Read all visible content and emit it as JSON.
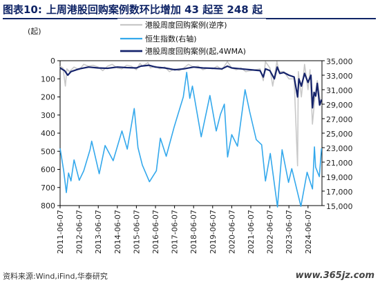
{
  "title": {
    "label": "图表10:",
    "text": "上周港股回购案例数环比增加 43 起至 248 起"
  },
  "left_unit": "(起)",
  "source": "资料来源:Wind,iFind,华泰研究",
  "watermark": "www.365jz.com",
  "colors": {
    "weekly_gray": "#c8c8c8",
    "hsi_blue": "#33a8ec",
    "ma4_navy": "#15236b",
    "title_navy": "#0f2466"
  },
  "chart_data": {
    "type": "line",
    "x_tick_labels": [
      "2011-06-07",
      "2012-06-07",
      "2013-06-07",
      "2014-06-07",
      "2015-06-07",
      "2016-06-07",
      "2017-06-07",
      "2018-06-07",
      "2019-06-07",
      "2020-06-07",
      "2021-06-07",
      "2022-06-07",
      "2023-06-07",
      "2024-06-07"
    ],
    "xlim": [
      "2011-06-07",
      "2025-03-01"
    ],
    "y_left": {
      "reversed": true,
      "ylim": [
        0,
        800
      ],
      "ticks": [
        0,
        100,
        200,
        300,
        400,
        500,
        600,
        700,
        800
      ]
    },
    "y_right": {
      "ylim": [
        15000,
        35000
      ],
      "ticks": [
        "15,000",
        "17,000",
        "19,000",
        "21,000",
        "23,000",
        "25,000",
        "27,000",
        "29,000",
        "31,000",
        "33,000",
        "35,000"
      ]
    },
    "legend_position": "top-center",
    "series": [
      {
        "name": "港股周度回购案例(逆序)",
        "axis": "left",
        "points": [
          [
            "2011-06-07",
            30
          ],
          [
            "2011-08-01",
            40
          ],
          [
            "2011-09-15",
            140
          ],
          [
            "2011-10-15",
            45
          ],
          [
            "2011-12-01",
            60
          ],
          [
            "2012-03-01",
            35
          ],
          [
            "2012-06-07",
            50
          ],
          [
            "2012-09-01",
            20
          ],
          [
            "2012-12-01",
            30
          ],
          [
            "2013-03-01",
            25
          ],
          [
            "2013-06-07",
            35
          ],
          [
            "2013-09-01",
            55
          ],
          [
            "2013-12-01",
            30
          ],
          [
            "2014-03-01",
            20
          ],
          [
            "2014-06-07",
            40
          ],
          [
            "2014-09-01",
            45
          ],
          [
            "2014-12-01",
            25
          ],
          [
            "2015-03-01",
            30
          ],
          [
            "2015-06-07",
            50
          ],
          [
            "2015-08-15",
            15
          ],
          [
            "2015-10-01",
            30
          ],
          [
            "2016-01-15",
            10
          ],
          [
            "2016-03-01",
            40
          ],
          [
            "2016-06-07",
            30
          ],
          [
            "2016-09-01",
            45
          ],
          [
            "2016-12-01",
            35
          ],
          [
            "2017-03-01",
            60
          ],
          [
            "2017-06-07",
            45
          ],
          [
            "2017-09-01",
            55
          ],
          [
            "2017-12-01",
            40
          ],
          [
            "2018-03-01",
            20
          ],
          [
            "2018-06-07",
            35
          ],
          [
            "2018-09-01",
            30
          ],
          [
            "2018-12-01",
            50
          ],
          [
            "2019-03-01",
            40
          ],
          [
            "2019-06-07",
            45
          ],
          [
            "2019-09-01",
            30
          ],
          [
            "2019-12-01",
            50
          ],
          [
            "2020-03-15",
            5
          ],
          [
            "2020-06-07",
            40
          ],
          [
            "2020-09-01",
            50
          ],
          [
            "2020-12-01",
            40
          ],
          [
            "2021-03-01",
            60
          ],
          [
            "2021-06-07",
            55
          ],
          [
            "2021-09-01",
            50
          ],
          [
            "2021-12-01",
            45
          ],
          [
            "2022-02-01",
            110
          ],
          [
            "2022-03-15",
            5
          ],
          [
            "2022-06-07",
            40
          ],
          [
            "2022-08-01",
            140
          ],
          [
            "2022-10-20",
            5
          ],
          [
            "2022-12-01",
            60
          ],
          [
            "2023-03-01",
            60
          ],
          [
            "2023-06-07",
            100
          ],
          [
            "2023-09-15",
            100
          ],
          [
            "2023-11-20",
            580
          ],
          [
            "2023-12-05",
            60
          ],
          [
            "2024-02-01",
            200
          ],
          [
            "2024-04-01",
            20
          ],
          [
            "2024-06-07",
            160
          ],
          [
            "2024-07-15",
            50
          ],
          [
            "2024-08-30",
            350
          ],
          [
            "2024-10-15",
            210
          ],
          [
            "2024-12-01",
            110
          ],
          [
            "2025-01-20",
            205
          ],
          [
            "2025-02-20",
            248
          ]
        ]
      },
      {
        "name": "恒生指数(右轴)",
        "axis": "right",
        "points": [
          [
            "2011-06-07",
            22900
          ],
          [
            "2011-08-15",
            19800
          ],
          [
            "2011-10-04",
            16800
          ],
          [
            "2011-11-15",
            19500
          ],
          [
            "2012-01-01",
            18400
          ],
          [
            "2012-03-01",
            21300
          ],
          [
            "2012-06-07",
            18500
          ],
          [
            "2012-09-01",
            19800
          ],
          [
            "2012-12-31",
            22700
          ],
          [
            "2013-02-01",
            23900
          ],
          [
            "2013-06-25",
            19400
          ],
          [
            "2013-10-15",
            23300
          ],
          [
            "2014-03-20",
            21200
          ],
          [
            "2014-09-03",
            25300
          ],
          [
            "2014-12-15",
            22800
          ],
          [
            "2015-04-27",
            28400
          ],
          [
            "2015-07-08",
            23000
          ],
          [
            "2015-09-29",
            20600
          ],
          [
            "2016-02-12",
            18300
          ],
          [
            "2016-06-24",
            19800
          ],
          [
            "2016-09-09",
            24300
          ],
          [
            "2016-12-30",
            21800
          ],
          [
            "2017-06-01",
            25900
          ],
          [
            "2017-11-22",
            30000
          ],
          [
            "2018-01-26",
            33400
          ],
          [
            "2018-03-26",
            29800
          ],
          [
            "2018-05-15",
            31500
          ],
          [
            "2018-10-30",
            24500
          ],
          [
            "2019-04-15",
            30200
          ],
          [
            "2019-08-15",
            25300
          ],
          [
            "2019-11-04",
            27600
          ],
          [
            "2020-01-17",
            29000
          ],
          [
            "2020-03-19",
            21700
          ],
          [
            "2020-06-07",
            24800
          ],
          [
            "2020-09-25",
            23200
          ],
          [
            "2021-02-17",
            31000
          ],
          [
            "2021-05-15",
            28000
          ],
          [
            "2021-09-20",
            24100
          ],
          [
            "2021-12-31",
            23400
          ],
          [
            "2022-03-15",
            18400
          ],
          [
            "2022-06-15",
            22200
          ],
          [
            "2022-10-31",
            14800
          ],
          [
            "2023-01-27",
            22700
          ],
          [
            "2023-05-31",
            18200
          ],
          [
            "2023-07-31",
            20100
          ],
          [
            "2024-01-22",
            14900
          ],
          [
            "2024-05-20",
            19600
          ],
          [
            "2024-09-01",
            17300
          ],
          [
            "2024-10-08",
            23100
          ],
          [
            "2024-10-30",
            20300
          ],
          [
            "2025-01-10",
            19000
          ],
          [
            "2025-02-20",
            22900
          ]
        ]
      },
      {
        "name": "港股周度回购案例(起,4WMA)",
        "axis": "left",
        "points": [
          [
            "2011-06-07",
            40
          ],
          [
            "2011-09-01",
            55
          ],
          [
            "2011-11-01",
            80
          ],
          [
            "2012-01-01",
            60
          ],
          [
            "2012-06-07",
            45
          ],
          [
            "2012-12-01",
            35
          ],
          [
            "2013-06-07",
            40
          ],
          [
            "2013-12-01",
            42
          ],
          [
            "2014-06-07",
            35
          ],
          [
            "2014-12-01",
            38
          ],
          [
            "2015-06-07",
            40
          ],
          [
            "2015-09-01",
            30
          ],
          [
            "2016-02-01",
            25
          ],
          [
            "2016-06-07",
            35
          ],
          [
            "2016-12-01",
            40
          ],
          [
            "2017-06-07",
            50
          ],
          [
            "2017-12-01",
            45
          ],
          [
            "2018-06-07",
            35
          ],
          [
            "2018-12-01",
            40
          ],
          [
            "2019-06-07",
            42
          ],
          [
            "2019-12-01",
            45
          ],
          [
            "2020-03-15",
            30
          ],
          [
            "2020-06-07",
            40
          ],
          [
            "2020-12-01",
            45
          ],
          [
            "2021-06-07",
            50
          ],
          [
            "2021-12-01",
            55
          ],
          [
            "2022-02-01",
            90
          ],
          [
            "2022-03-15",
            45
          ],
          [
            "2022-06-07",
            55
          ],
          [
            "2022-09-01",
            100
          ],
          [
            "2022-10-25",
            35
          ],
          [
            "2022-12-15",
            70
          ],
          [
            "2023-03-01",
            65
          ],
          [
            "2023-06-07",
            80
          ],
          [
            "2023-09-15",
            90
          ],
          [
            "2023-11-20",
            200
          ],
          [
            "2023-12-15",
            100
          ],
          [
            "2024-02-01",
            140
          ],
          [
            "2024-04-01",
            70
          ],
          [
            "2024-06-07",
            120
          ],
          [
            "2024-08-01",
            80
          ],
          [
            "2024-09-01",
            260
          ],
          [
            "2024-10-01",
            175
          ],
          [
            "2024-11-01",
            195
          ],
          [
            "2024-12-01",
            125
          ],
          [
            "2025-01-15",
            245
          ],
          [
            "2025-02-20",
            215
          ]
        ]
      }
    ]
  }
}
